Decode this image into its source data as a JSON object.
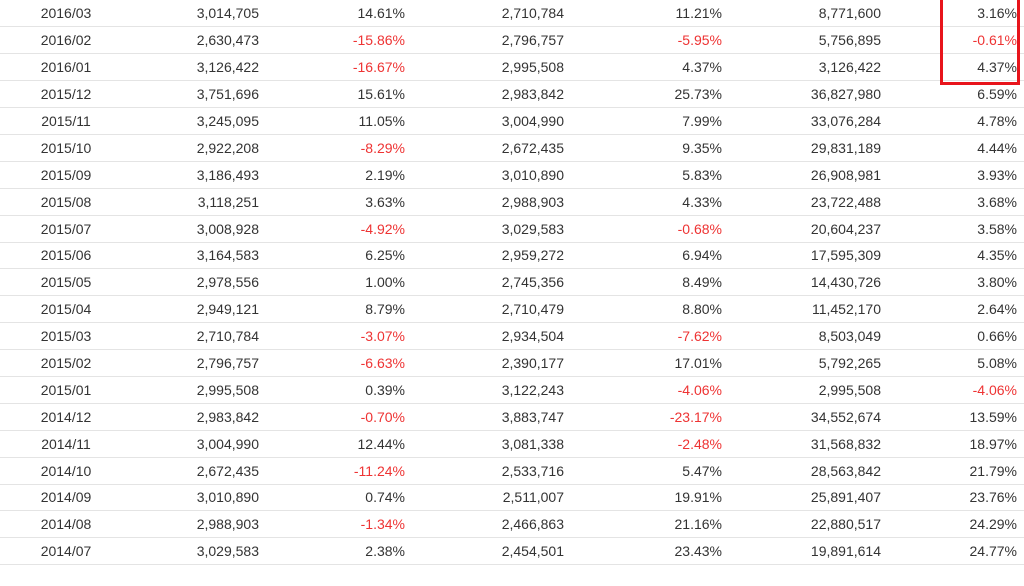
{
  "table": {
    "rows": [
      [
        "2016/03",
        "3,014,705",
        "14.61%",
        "2,710,784",
        "11.21%",
        "8,771,600",
        "3.16%"
      ],
      [
        "2016/02",
        "2,630,473",
        "-15.86%",
        "2,796,757",
        "-5.95%",
        "5,756,895",
        "-0.61%"
      ],
      [
        "2016/01",
        "3,126,422",
        "-16.67%",
        "2,995,508",
        "4.37%",
        "3,126,422",
        "4.37%"
      ],
      [
        "2015/12",
        "3,751,696",
        "15.61%",
        "2,983,842",
        "25.73%",
        "36,827,980",
        "6.59%"
      ],
      [
        "2015/11",
        "3,245,095",
        "11.05%",
        "3,004,990",
        "7.99%",
        "33,076,284",
        "4.78%"
      ],
      [
        "2015/10",
        "2,922,208",
        "-8.29%",
        "2,672,435",
        "9.35%",
        "29,831,189",
        "4.44%"
      ],
      [
        "2015/09",
        "3,186,493",
        "2.19%",
        "3,010,890",
        "5.83%",
        "26,908,981",
        "3.93%"
      ],
      [
        "2015/08",
        "3,118,251",
        "3.63%",
        "2,988,903",
        "4.33%",
        "23,722,488",
        "3.68%"
      ],
      [
        "2015/07",
        "3,008,928",
        "-4.92%",
        "3,029,583",
        "-0.68%",
        "20,604,237",
        "3.58%"
      ],
      [
        "2015/06",
        "3,164,583",
        "6.25%",
        "2,959,272",
        "6.94%",
        "17,595,309",
        "4.35%"
      ],
      [
        "2015/05",
        "2,978,556",
        "1.00%",
        "2,745,356",
        "8.49%",
        "14,430,726",
        "3.80%"
      ],
      [
        "2015/04",
        "2,949,121",
        "8.79%",
        "2,710,479",
        "8.80%",
        "11,452,170",
        "2.64%"
      ],
      [
        "2015/03",
        "2,710,784",
        "-3.07%",
        "2,934,504",
        "-7.62%",
        "8,503,049",
        "0.66%"
      ],
      [
        "2015/02",
        "2,796,757",
        "-6.63%",
        "2,390,177",
        "17.01%",
        "5,792,265",
        "5.08%"
      ],
      [
        "2015/01",
        "2,995,508",
        "0.39%",
        "3,122,243",
        "-4.06%",
        "2,995,508",
        "-4.06%"
      ],
      [
        "2014/12",
        "2,983,842",
        "-0.70%",
        "3,883,747",
        "-23.17%",
        "34,552,674",
        "13.59%"
      ],
      [
        "2014/11",
        "3,004,990",
        "12.44%",
        "3,081,338",
        "-2.48%",
        "31,568,832",
        "18.97%"
      ],
      [
        "2014/10",
        "2,672,435",
        "-11.24%",
        "2,533,716",
        "5.47%",
        "28,563,842",
        "21.79%"
      ],
      [
        "2014/09",
        "3,010,890",
        "0.74%",
        "2,511,007",
        "19.91%",
        "25,891,407",
        "23.76%"
      ],
      [
        "2014/08",
        "2,988,903",
        "-1.34%",
        "2,466,863",
        "21.16%",
        "22,880,517",
        "24.29%"
      ],
      [
        "2014/07",
        "3,029,583",
        "2.38%",
        "2,454,501",
        "23.43%",
        "19,891,614",
        "24.77%"
      ]
    ]
  },
  "colors": {
    "negative": "#ee3333",
    "highlight_border": "#e8141b",
    "row_divider": "#e4e4e4"
  }
}
